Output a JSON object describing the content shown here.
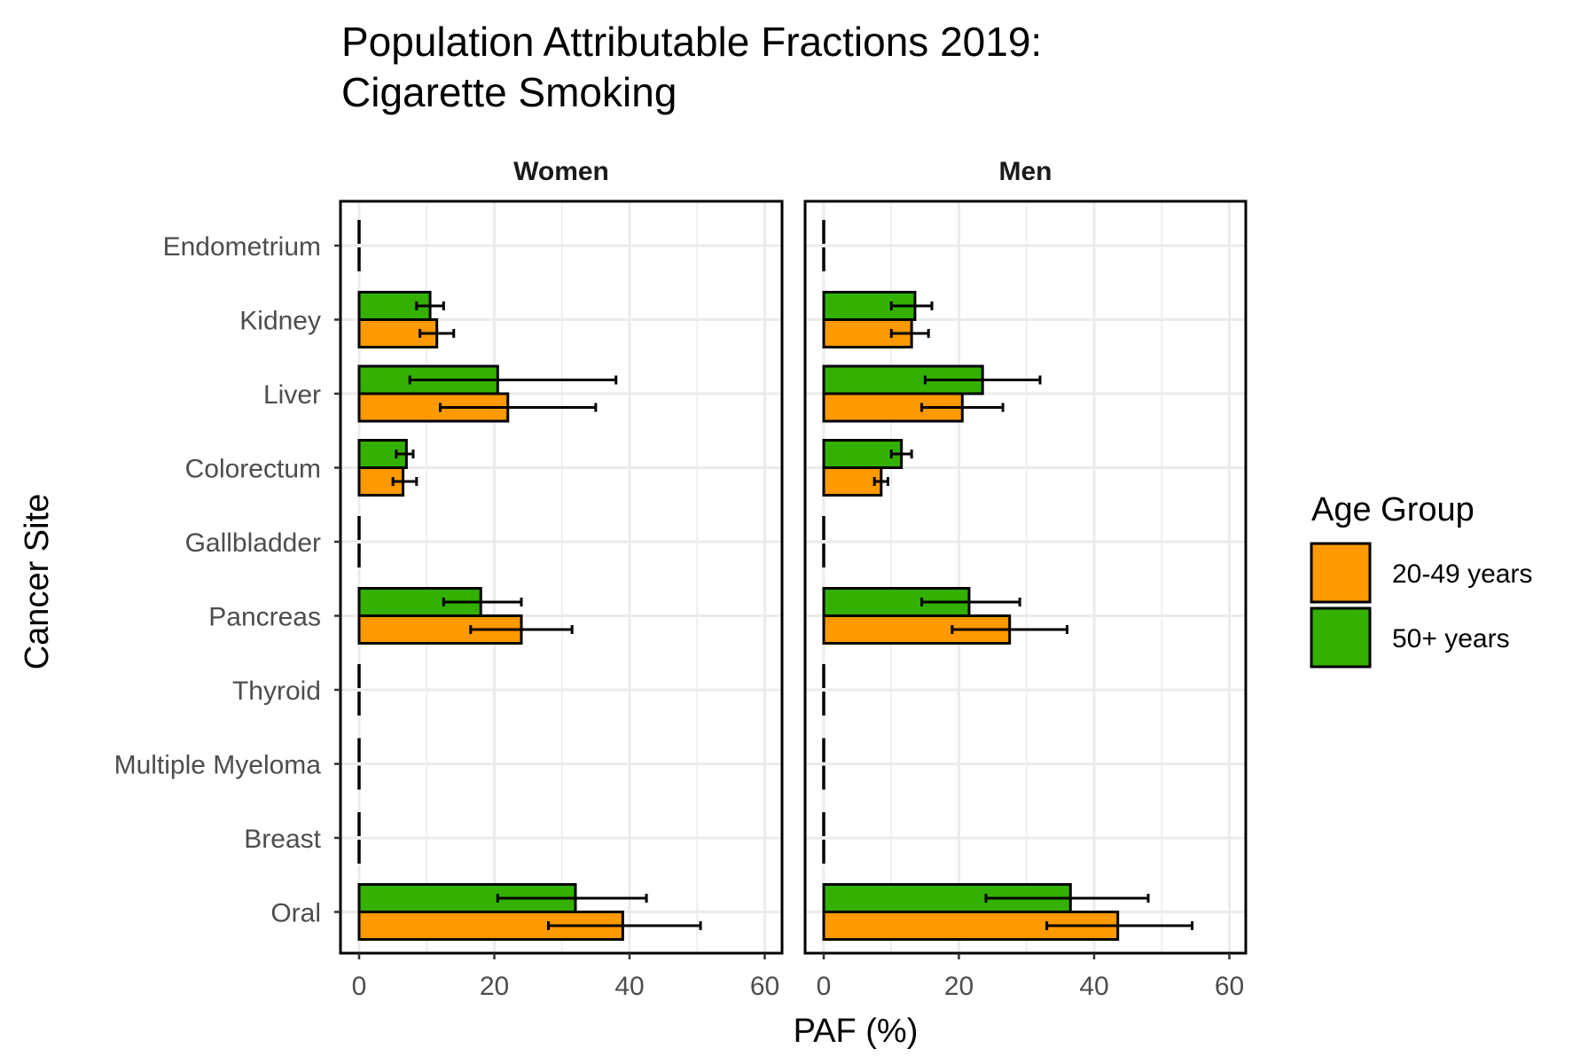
{
  "chart_data": {
    "type": "bar",
    "orientation": "horizontal",
    "title": "Population Attributable Fractions 2019:",
    "subtitle": "Cigarette Smoking",
    "xlabel": "PAF (%)",
    "ylabel": "Cancer Site",
    "xlim": [
      0,
      60
    ],
    "xticks": [
      "0",
      "20",
      "40",
      "60"
    ],
    "grid": true,
    "error_bars": true,
    "categories": [
      "Endometrium",
      "Kidney",
      "Liver",
      "Colorectum",
      "Gallbladder",
      "Pancreas",
      "Thyroid",
      "Multiple Myeloma",
      "Breast",
      "Oral"
    ],
    "legend": {
      "title": "Age Group",
      "position": "right",
      "entries": [
        {
          "label": "20-49 years",
          "color": "#FF9900"
        },
        {
          "label": "50+ years",
          "color": "#33B000"
        }
      ]
    },
    "panels": [
      {
        "name": "Women",
        "series": [
          {
            "name": "20-49 years",
            "color": "#FF9900",
            "values": [
              0,
              11.5,
              22,
              6.5,
              0,
              24,
              0,
              0,
              0,
              39
            ],
            "lower": [
              0,
              9,
              12,
              5,
              0,
              16.5,
              0,
              0,
              0,
              28
            ],
            "upper": [
              0,
              14,
              35,
              8.5,
              0,
              31.5,
              0,
              0,
              0,
              50.5
            ]
          },
          {
            "name": "50+ years",
            "color": "#33B000",
            "values": [
              0,
              10.5,
              20.5,
              7,
              0,
              18,
              0,
              0,
              0,
              32
            ],
            "lower": [
              0,
              8.5,
              7.5,
              5.5,
              0,
              12.5,
              0,
              0,
              0,
              20.5
            ],
            "upper": [
              0,
              12.5,
              38,
              8,
              0,
              24,
              0,
              0,
              0,
              42.5
            ]
          }
        ]
      },
      {
        "name": "Men",
        "series": [
          {
            "name": "20-49 years",
            "color": "#FF9900",
            "values": [
              0,
              13,
              20.5,
              8.5,
              0,
              27.5,
              0,
              0,
              0,
              43.5
            ],
            "lower": [
              0,
              10,
              14.5,
              7.5,
              0,
              19,
              0,
              0,
              0,
              33
            ],
            "upper": [
              0,
              15.5,
              26.5,
              9.5,
              0,
              36,
              0,
              0,
              0,
              54.5
            ]
          },
          {
            "name": "50+ years",
            "color": "#33B000",
            "values": [
              0,
              13.5,
              23.5,
              11.5,
              0,
              21.5,
              0,
              0,
              0,
              36.5
            ],
            "lower": [
              0,
              10,
              15,
              10,
              0,
              14.5,
              0,
              0,
              0,
              24
            ],
            "upper": [
              0,
              16,
              32,
              13,
              0,
              29,
              0,
              0,
              0,
              48
            ]
          }
        ]
      }
    ]
  }
}
